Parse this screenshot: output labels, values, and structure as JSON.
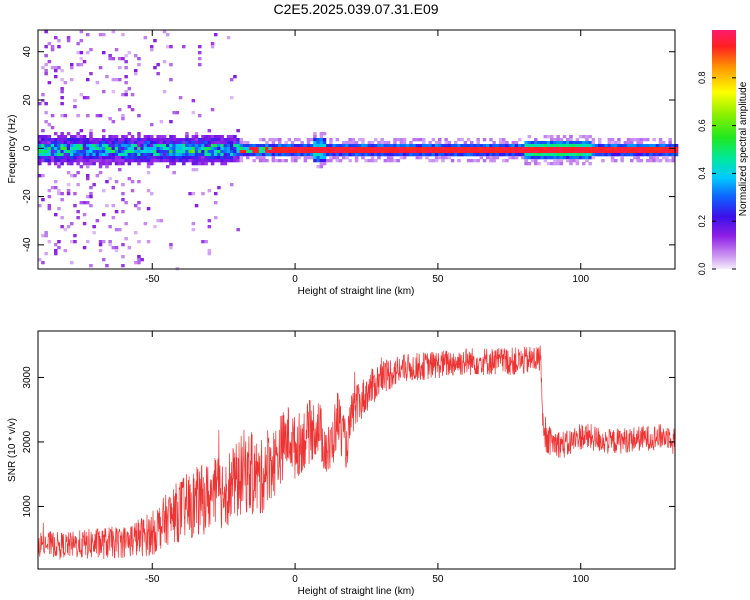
{
  "title": "C2E5.2025.039.07.31.E09",
  "chart_data": [
    {
      "type": "heatmap",
      "xlabel": "Height of straight line (km)",
      "ylabel": "Frequency (Hz)",
      "xlim": [
        -90,
        133
      ],
      "ylim": [
        -50,
        49
      ],
      "xticks": [
        -50,
        0,
        50,
        100
      ],
      "yticks": [
        -40,
        -20,
        0,
        20,
        40
      ],
      "colorbar": {
        "label": "Normalized spectral amplitude",
        "range": [
          0,
          1
        ],
        "ticks": [
          "0.0",
          "0.2",
          "0.4",
          "0.6",
          "0.8"
        ]
      },
      "features": {
        "carrier_frequency_hz": 0,
        "noise_region_x": [
          -90,
          -20
        ],
        "strong_line_x": [
          -20,
          133
        ],
        "brightening_x": [
          80,
          103
        ],
        "spike_x": 8
      }
    },
    {
      "type": "line",
      "xlabel": "Height of straight line (km)",
      "ylabel": "SNR (10 * v/v)",
      "xlim": [
        -90,
        133
      ],
      "ylim": [
        30,
        3720
      ],
      "xticks": [
        -50,
        0,
        50,
        100
      ],
      "yticks": [
        1000,
        2000,
        3000
      ],
      "series": [
        {
          "color": "#ee3333",
          "x": [
            -90,
            -80,
            -70,
            -60,
            -50,
            -45,
            -40,
            -35,
            -30,
            -25,
            -20,
            -18,
            -15,
            -12,
            -10,
            -7,
            -5,
            -2,
            0,
            3,
            5,
            8,
            10,
            12,
            15,
            18,
            20,
            25,
            30,
            35,
            40,
            50,
            60,
            70,
            80,
            86,
            87,
            90,
            95,
            100,
            110,
            120,
            133
          ],
          "y": [
            420,
            400,
            420,
            450,
            580,
            800,
            950,
            1050,
            1150,
            1250,
            1400,
            1550,
            1500,
            1400,
            1650,
            1700,
            1900,
            2100,
            1900,
            2050,
            2150,
            2250,
            2000,
            1800,
            2400,
            1900,
            2450,
            2750,
            3000,
            3100,
            3150,
            3200,
            3250,
            3250,
            3250,
            3300,
            2050,
            2000,
            1950,
            2100,
            2000,
            2050,
            2100
          ],
          "band": [
            200,
            200,
            250,
            250,
            350,
            400,
            500,
            550,
            550,
            600,
            600,
            650,
            650,
            600,
            600,
            550,
            550,
            500,
            500,
            500,
            500,
            450,
            450,
            450,
            450,
            350,
            350,
            300,
            280,
            250,
            220,
            220,
            220,
            220,
            220,
            220,
            220,
            220,
            220,
            220,
            200,
            200,
            200
          ]
        }
      ]
    }
  ]
}
